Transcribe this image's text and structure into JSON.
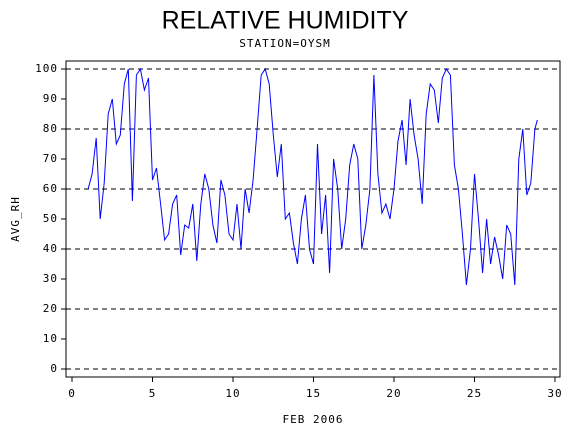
{
  "chart_data": {
    "type": "line",
    "title": "RELATIVE HUMIDITY",
    "subtitle": "STATION=OYSM",
    "x_label": "FEB 2006",
    "y_label": "AVG_RH",
    "xlim": [
      0,
      30
    ],
    "xticks": [
      0,
      5,
      10,
      15,
      20,
      25,
      30
    ],
    "ylim": [
      0,
      100
    ],
    "yticks": [
      0,
      10,
      20,
      30,
      40,
      50,
      60,
      70,
      80,
      90,
      100
    ],
    "grid": true,
    "series": [
      {
        "name": "AVG_RH",
        "color": "#0000ff",
        "x": [
          1.0,
          1.25,
          1.5,
          1.75,
          2.0,
          2.25,
          2.5,
          2.75,
          3.0,
          3.25,
          3.5,
          3.75,
          4.0,
          4.25,
          4.5,
          4.75,
          5.0,
          5.25,
          5.5,
          5.75,
          6.0,
          6.25,
          6.5,
          6.75,
          7.0,
          7.25,
          7.5,
          7.75,
          8.0,
          8.25,
          8.5,
          8.75,
          9.0,
          9.25,
          9.5,
          9.75,
          10.0,
          10.25,
          10.5,
          10.75,
          11.0,
          11.25,
          11.5,
          11.75,
          12.0,
          12.25,
          12.5,
          12.75,
          13.0,
          13.25,
          13.5,
          13.75,
          14.0,
          14.25,
          14.5,
          14.75,
          15.0,
          15.25,
          15.5,
          15.75,
          16.0,
          16.25,
          16.5,
          16.75,
          17.0,
          17.25,
          17.5,
          17.75,
          18.0,
          18.25,
          18.5,
          18.75,
          19.0,
          19.25,
          19.5,
          19.75,
          20.0,
          20.25,
          20.5,
          20.75,
          21.0,
          21.25,
          21.5,
          21.75,
          22.0,
          22.25,
          22.5,
          22.75,
          23.0,
          23.25,
          23.5,
          23.75,
          24.0,
          24.25,
          24.5,
          24.75,
          25.0,
          25.25,
          25.5,
          25.75,
          26.0,
          26.25,
          26.5,
          26.75,
          27.0,
          27.25,
          27.5,
          27.75,
          28.0,
          28.25,
          28.5,
          28.75,
          28.9
        ],
        "values": [
          60,
          65,
          77,
          50,
          62,
          85,
          90,
          75,
          78,
          95,
          100,
          56,
          98,
          100,
          93,
          97,
          63,
          67,
          55,
          43,
          45,
          55,
          58,
          38,
          48,
          47,
          55,
          36,
          55,
          65,
          60,
          48,
          42,
          63,
          58,
          45,
          43,
          55,
          40,
          60,
          52,
          63,
          80,
          98,
          100,
          95,
          78,
          64,
          75,
          50,
          52,
          42,
          35,
          50,
          58,
          40,
          35,
          75,
          45,
          58,
          32,
          70,
          60,
          40,
          50,
          68,
          75,
          70,
          40,
          48,
          60,
          98,
          65,
          52,
          55,
          50,
          60,
          76,
          83,
          68,
          90,
          78,
          70,
          55,
          85,
          95,
          93,
          82,
          97,
          100,
          98,
          68,
          60,
          45,
          28,
          40,
          65,
          50,
          32,
          50,
          35,
          44,
          38,
          30,
          48,
          45,
          28,
          70,
          80,
          58,
          62,
          80,
          83
        ]
      }
    ]
  }
}
